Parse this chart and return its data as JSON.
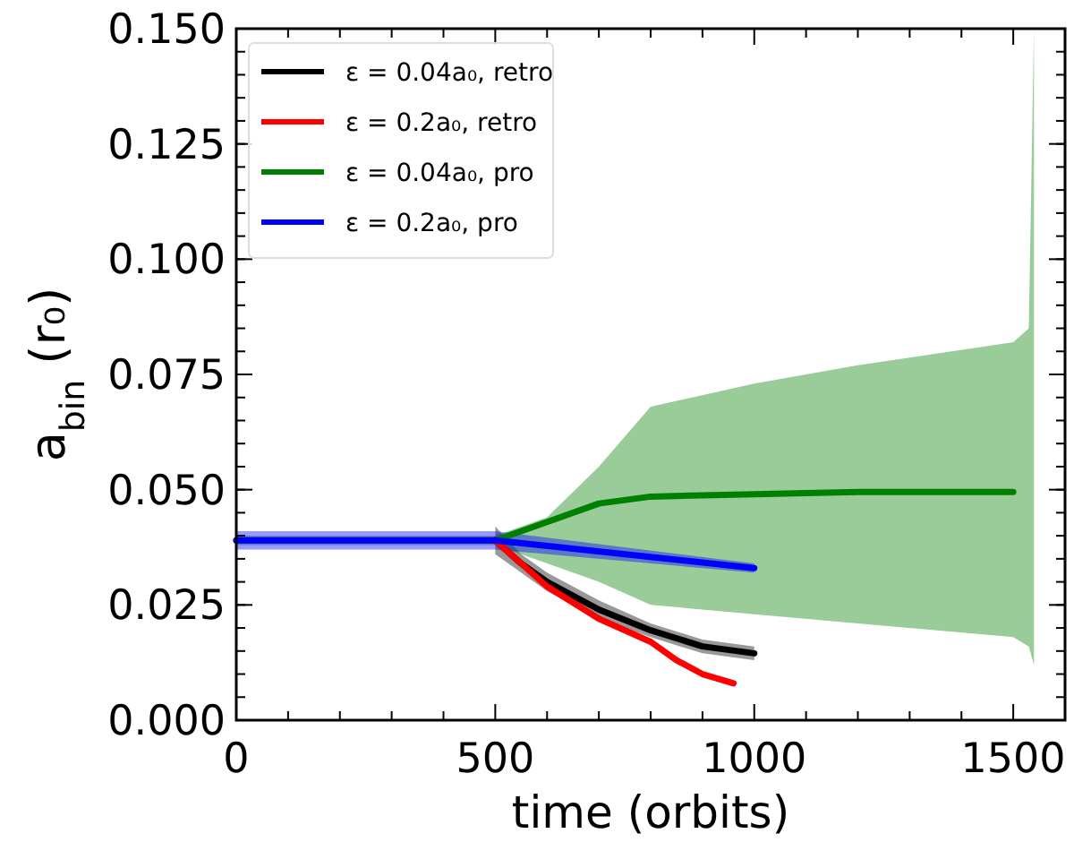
{
  "chart_data": {
    "type": "line",
    "xlabel": "time (orbits)",
    "ylabel": "a$_{bin}$ (r₀)",
    "xlim": [
      0,
      1600
    ],
    "ylim": [
      0,
      0.15
    ],
    "xticks": [
      0,
      {
        "value": 100,
        "label": null
      },
      {
        "value": 200,
        "label": null
      },
      {
        "value": 300,
        "label": null
      },
      {
        "value": 400,
        "label": null
      },
      500,
      {
        "value": 600,
        "label": null
      },
      {
        "value": 700,
        "label": null
      },
      {
        "value": 800,
        "label": null
      },
      {
        "value": 900,
        "label": null
      },
      1000,
      {
        "value": 1100,
        "label": null
      },
      {
        "value": 1200,
        "label": null
      },
      {
        "value": 1300,
        "label": null
      },
      {
        "value": 1400,
        "label": null
      },
      1500,
      {
        "value": 1600,
        "label": null
      }
    ],
    "yticks": [
      {
        "value": 0,
        "label": "0.000"
      },
      {
        "value": 0.025,
        "label": "0.025"
      },
      {
        "value": 0.05,
        "label": "0.050"
      },
      {
        "value": 0.075,
        "label": "0.075"
      },
      {
        "value": 0.1,
        "label": "0.100"
      },
      {
        "value": 0.125,
        "label": "0.125"
      },
      {
        "value": 0.15,
        "label": "0.150"
      }
    ],
    "legend": "top left",
    "grid": false,
    "marker": "none",
    "line_style": "solid",
    "series": [
      {
        "name": "ε = 0.04a₀, retro",
        "color": "#000000",
        "x": [
          500,
          550,
          600,
          700,
          800,
          900,
          1000
        ],
        "values": [
          0.039,
          0.034,
          0.03,
          0.024,
          0.0195,
          0.016,
          0.0145
        ],
        "lower": [
          0.036,
          0.032,
          0.028,
          0.022,
          0.018,
          0.0145,
          0.013
        ],
        "upper": [
          0.042,
          0.036,
          0.032,
          0.026,
          0.021,
          0.0175,
          0.016
        ]
      },
      {
        "name": "ε = 0.2a₀, retro",
        "color": "#ff0000",
        "x": [
          500,
          600,
          700,
          800,
          850,
          900,
          960
        ],
        "values": [
          0.039,
          0.029,
          0.022,
          0.017,
          0.013,
          0.01,
          0.008
        ]
      },
      {
        "name": "ε = 0.04a₀, pro",
        "color": "#008000",
        "x": [
          0,
          500,
          600,
          700,
          800,
          1000,
          1200,
          1500,
          1530,
          1540
        ],
        "values": [
          0.039,
          0.039,
          0.043,
          0.047,
          0.0485,
          0.049,
          0.0495,
          0.0495,
          null,
          null
        ],
        "lower": [
          0.038,
          0.038,
          0.034,
          0.03,
          0.025,
          0.023,
          0.021,
          0.018,
          0.016,
          0.012
        ],
        "upper": [
          0.04,
          0.04,
          0.044,
          0.055,
          0.068,
          0.073,
          0.077,
          0.082,
          0.085,
          0.15
        ]
      },
      {
        "name": "ε = 0.2a₀, pro",
        "color": "#0000ff",
        "x": [
          0,
          500,
          1000
        ],
        "values": [
          0.039,
          0.039,
          0.033
        ],
        "lower": [
          0.037,
          0.037,
          0.032
        ],
        "upper": [
          0.041,
          0.041,
          0.034
        ]
      }
    ]
  }
}
